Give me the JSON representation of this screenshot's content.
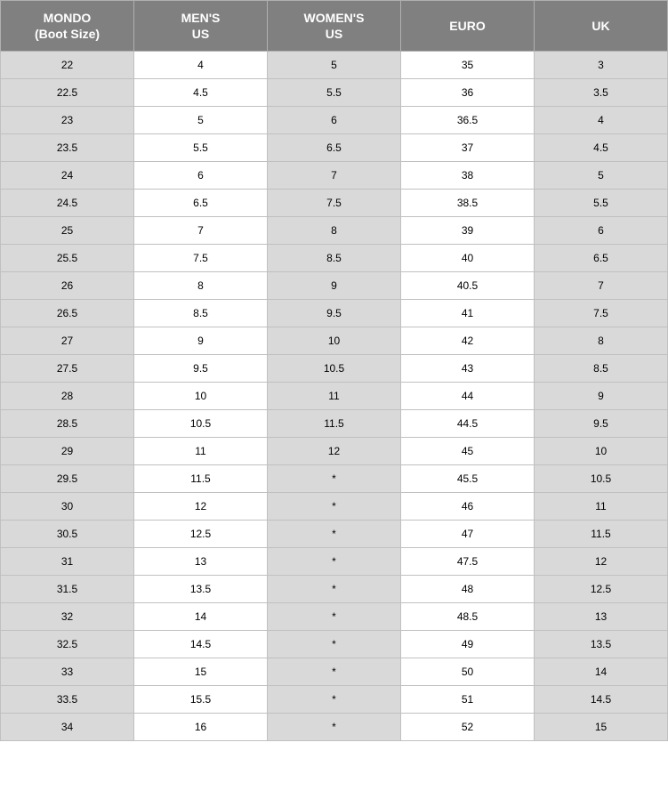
{
  "table": {
    "type": "table",
    "header_bg": "#808080",
    "header_text_color": "#ffffff",
    "cell_gray": "#d9d9d9",
    "cell_white": "#ffffff",
    "border_color": "#c0c0c0",
    "header_fontsize": 14,
    "cell_fontsize": 12,
    "columns": [
      {
        "line1": "MONDO",
        "line2": "(Boot Size)"
      },
      {
        "line1": "MEN'S",
        "line2": "US"
      },
      {
        "line1": "WOMEN'S",
        "line2": "US"
      },
      {
        "line1": "EURO",
        "line2": ""
      },
      {
        "line1": "UK",
        "line2": ""
      }
    ],
    "rows": [
      [
        "22",
        "4",
        "5",
        "35",
        "3"
      ],
      [
        "22.5",
        "4.5",
        "5.5",
        "36",
        "3.5"
      ],
      [
        "23",
        "5",
        "6",
        "36.5",
        "4"
      ],
      [
        "23.5",
        "5.5",
        "6.5",
        "37",
        "4.5"
      ],
      [
        "24",
        "6",
        "7",
        "38",
        "5"
      ],
      [
        "24.5",
        "6.5",
        "7.5",
        "38.5",
        "5.5"
      ],
      [
        "25",
        "7",
        "8",
        "39",
        "6"
      ],
      [
        "25.5",
        "7.5",
        "8.5",
        "40",
        "6.5"
      ],
      [
        "26",
        "8",
        "9",
        "40.5",
        "7"
      ],
      [
        "26.5",
        "8.5",
        "9.5",
        "41",
        "7.5"
      ],
      [
        "27",
        "9",
        "10",
        "42",
        "8"
      ],
      [
        "27.5",
        "9.5",
        "10.5",
        "43",
        "8.5"
      ],
      [
        "28",
        "10",
        "11",
        "44",
        "9"
      ],
      [
        "28.5",
        "10.5",
        "11.5",
        "44.5",
        "9.5"
      ],
      [
        "29",
        "11",
        "12",
        "45",
        "10"
      ],
      [
        "29.5",
        "11.5",
        "*",
        "45.5",
        "10.5"
      ],
      [
        "30",
        "12",
        "*",
        "46",
        "11"
      ],
      [
        "30.5",
        "12.5",
        "*",
        "47",
        "11.5"
      ],
      [
        "31",
        "13",
        "*",
        "47.5",
        "12"
      ],
      [
        "31.5",
        "13.5",
        "*",
        "48",
        "12.5"
      ],
      [
        "32",
        "14",
        "*",
        "48.5",
        "13"
      ],
      [
        "32.5",
        "14.5",
        "*",
        "49",
        "13.5"
      ],
      [
        "33",
        "15",
        "*",
        "50",
        "14"
      ],
      [
        "33.5",
        "15.5",
        "*",
        "51",
        "14.5"
      ],
      [
        "34",
        "16",
        "*",
        "52",
        "15"
      ]
    ],
    "col_shading": [
      "gray",
      "white",
      "gray",
      "white",
      "gray"
    ]
  }
}
